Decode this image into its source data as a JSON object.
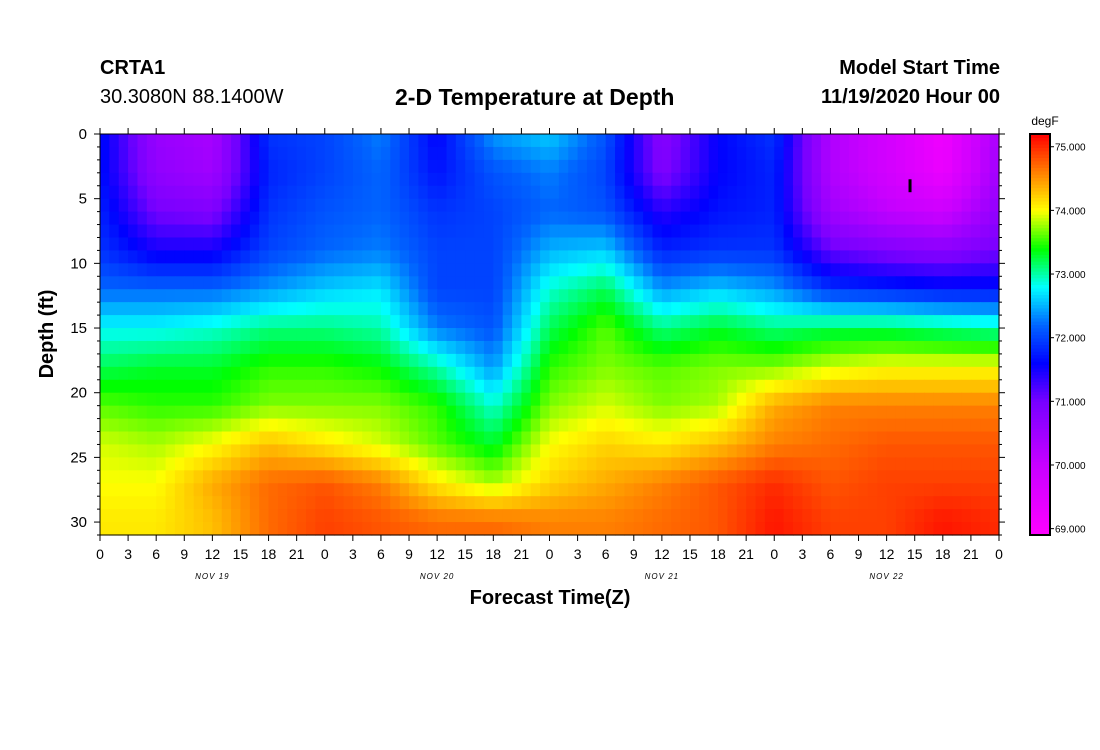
{
  "header": {
    "station": "CRTA1",
    "coordinates": "30.3080N 88.1400W",
    "title": "2-D Temperature at Depth",
    "start_label": "Model Start Time",
    "start_time": "11/19/2020 Hour 00"
  },
  "chart_data": {
    "type": "heatmap",
    "title": "2-D Temperature at Depth",
    "xlabel": "Forecast Time(Z)",
    "ylabel": "Depth (ft)",
    "colorbar_label": "degF",
    "x_tick_labels": [
      "0",
      "3",
      "6",
      "9",
      "12",
      "15",
      "18",
      "21",
      "0",
      "3",
      "6",
      "9",
      "12",
      "15",
      "18",
      "21",
      "0",
      "3",
      "6",
      "9",
      "12",
      "15",
      "18",
      "21",
      "0",
      "3",
      "6",
      "9",
      "12",
      "15",
      "18",
      "21",
      "0"
    ],
    "date_labels": [
      {
        "label": "NOV 19",
        "hour": 12
      },
      {
        "label": "NOV 20",
        "hour": 36
      },
      {
        "label": "NOV 21",
        "hour": 60
      },
      {
        "label": "NOV 22",
        "hour": 84
      }
    ],
    "xlim": [
      0,
      96
    ],
    "ylim": [
      0,
      31
    ],
    "y_ticks": [
      0,
      5,
      10,
      15,
      20,
      25,
      30
    ],
    "colorbar_range": [
      68.9,
      75.2
    ],
    "colorbar_ticks": [
      "69.000",
      "70.000",
      "71.000",
      "72.000",
      "73.000",
      "74.000",
      "75.000"
    ],
    "colorbar_tick_values": [
      69,
      70,
      71,
      72,
      73,
      74,
      75
    ],
    "colormap": [
      {
        "v": 68.9,
        "color": "#ff00ff"
      },
      {
        "v": 70.0,
        "color": "#c800ff"
      },
      {
        "v": 71.0,
        "color": "#7800ff"
      },
      {
        "v": 71.6,
        "color": "#0000ff"
      },
      {
        "v": 72.2,
        "color": "#0064ff"
      },
      {
        "v": 72.8,
        "color": "#00ffff"
      },
      {
        "v": 73.4,
        "color": "#00ff00"
      },
      {
        "v": 74.0,
        "color": "#ffff00"
      },
      {
        "v": 74.6,
        "color": "#ff8000"
      },
      {
        "v": 75.2,
        "color": "#ff0000"
      }
    ],
    "depths_ft": [
      0,
      3,
      6,
      9,
      12,
      15,
      18,
      21,
      24,
      27,
      30
    ],
    "hours": [
      0,
      6,
      12,
      18,
      24,
      30,
      36,
      42,
      48,
      54,
      60,
      66,
      72,
      78,
      84,
      90,
      96
    ],
    "temperature_degF": [
      [
        71.7,
        70.6,
        70.4,
        71.9,
        72.0,
        72.3,
        71.6,
        72.4,
        72.6,
        72.1,
        70.8,
        71.6,
        71.9,
        70.3,
        69.8,
        69.2,
        70.4
      ],
      [
        71.7,
        70.7,
        70.5,
        71.8,
        72.0,
        72.2,
        71.7,
        72.1,
        72.3,
        72.0,
        70.9,
        71.6,
        71.8,
        70.3,
        69.8,
        69.3,
        70.5
      ],
      [
        71.8,
        71.0,
        70.9,
        71.9,
        72.1,
        72.2,
        71.9,
        72.0,
        72.2,
        72.1,
        71.4,
        71.7,
        71.8,
        70.5,
        70.1,
        69.9,
        70.7
      ],
      [
        71.9,
        71.5,
        71.5,
        72.0,
        72.2,
        72.3,
        72.0,
        72.0,
        72.5,
        72.6,
        71.8,
        71.9,
        71.9,
        71.1,
        70.9,
        70.8,
        71.0
      ],
      [
        72.2,
        72.2,
        72.2,
        72.4,
        72.6,
        72.7,
        72.0,
        72.0,
        72.9,
        73.2,
        72.4,
        72.6,
        72.4,
        71.9,
        71.8,
        71.7,
        71.7
      ],
      [
        72.8,
        72.8,
        72.9,
        73.1,
        73.1,
        73.0,
        72.3,
        72.1,
        73.2,
        73.6,
        73.1,
        73.3,
        73.1,
        73.2,
        73.2,
        73.1,
        73.0
      ],
      [
        73.2,
        73.3,
        73.3,
        73.5,
        73.5,
        73.4,
        73.0,
        72.4,
        73.5,
        73.7,
        73.6,
        73.7,
        73.7,
        73.9,
        74.0,
        74.0,
        74.0
      ],
      [
        73.6,
        73.5,
        73.5,
        73.7,
        73.7,
        73.7,
        73.5,
        72.9,
        73.7,
        73.9,
        73.7,
        73.8,
        74.4,
        74.6,
        74.6,
        74.6,
        74.6
      ],
      [
        73.9,
        73.8,
        74.0,
        74.3,
        74.1,
        73.9,
        73.6,
        73.3,
        74.0,
        74.2,
        74.1,
        74.3,
        74.6,
        74.7,
        74.8,
        74.8,
        74.8
      ],
      [
        74.0,
        74.0,
        74.4,
        74.7,
        74.8,
        74.6,
        74.1,
        73.8,
        74.2,
        74.4,
        74.6,
        74.8,
        75.0,
        74.8,
        74.9,
        74.9,
        74.9
      ],
      [
        74.1,
        74.1,
        74.3,
        74.7,
        74.9,
        74.8,
        74.7,
        74.7,
        74.6,
        74.6,
        74.7,
        74.8,
        75.1,
        74.9,
        74.9,
        75.1,
        75.0
      ]
    ]
  }
}
